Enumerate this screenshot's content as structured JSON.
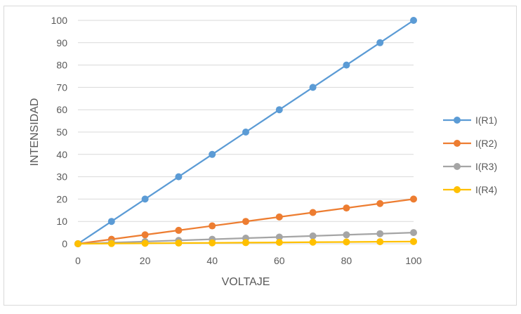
{
  "chart_data": {
    "type": "line",
    "xlabel": "VOLTAJE",
    "ylabel": "INTENSIDAD",
    "x": [
      0,
      10,
      20,
      30,
      40,
      50,
      60,
      70,
      80,
      90,
      100
    ],
    "xlim": [
      0,
      100
    ],
    "ylim": [
      0,
      100
    ],
    "xticks": [
      0,
      20,
      40,
      60,
      80,
      100
    ],
    "yticks": [
      0,
      10,
      20,
      30,
      40,
      50,
      60,
      70,
      80,
      90,
      100
    ],
    "grid": "horizontal",
    "legend_position": "right",
    "series": [
      {
        "name": "I(R1)",
        "color": "#5b9bd5",
        "values": [
          0,
          10,
          20,
          30,
          40,
          50,
          60,
          70,
          80,
          90,
          100
        ]
      },
      {
        "name": "I(R2)",
        "color": "#ed7d31",
        "values": [
          0,
          2,
          4,
          6,
          8,
          10,
          12,
          14,
          16,
          18,
          20
        ]
      },
      {
        "name": "I(R3)",
        "color": "#a5a5a5",
        "values": [
          0,
          0.5,
          1,
          1.5,
          2,
          2.5,
          3,
          3.5,
          4,
          4.5,
          5
        ]
      },
      {
        "name": "I(R4)",
        "color": "#ffc000",
        "values": [
          0,
          0.1,
          0.2,
          0.3,
          0.4,
          0.5,
          0.6,
          0.7,
          0.8,
          0.9,
          1
        ]
      }
    ]
  }
}
